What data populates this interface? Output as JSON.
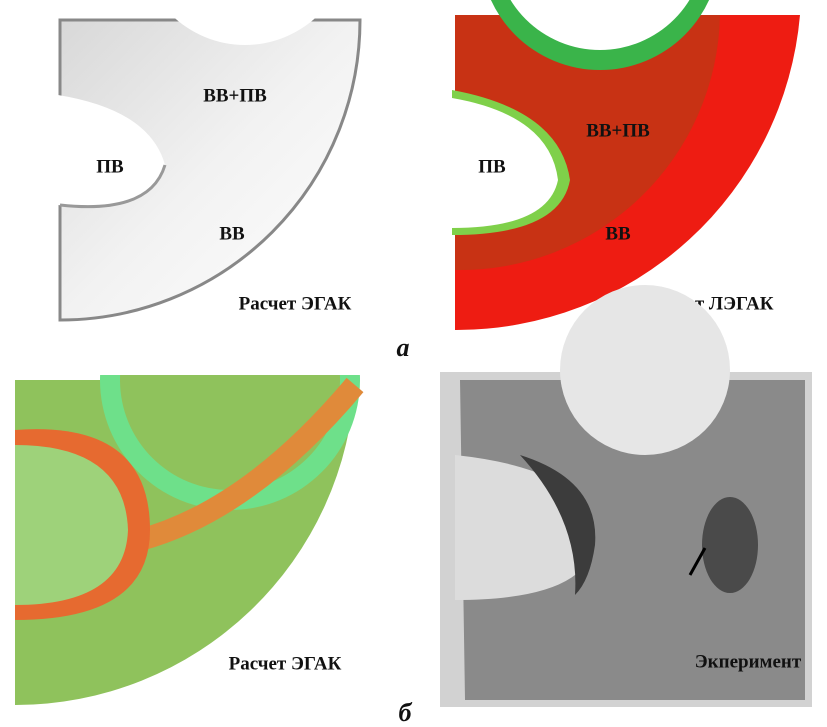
{
  "figure": {
    "part_a": {
      "label": "а",
      "panels": [
        {
          "caption": "Расчет ЭГАК",
          "regions": [
            "ВВ+ПВ",
            "ПВ",
            "ВВ"
          ]
        },
        {
          "caption": "Расчет ЛЭГАК",
          "regions": [
            "ВВ+ПВ",
            "ПВ",
            "ВВ"
          ]
        }
      ]
    },
    "part_b": {
      "label": "б",
      "panels": [
        {
          "caption": "Расчет ЭГАК"
        },
        {
          "caption": "Экперимент"
        }
      ]
    }
  }
}
